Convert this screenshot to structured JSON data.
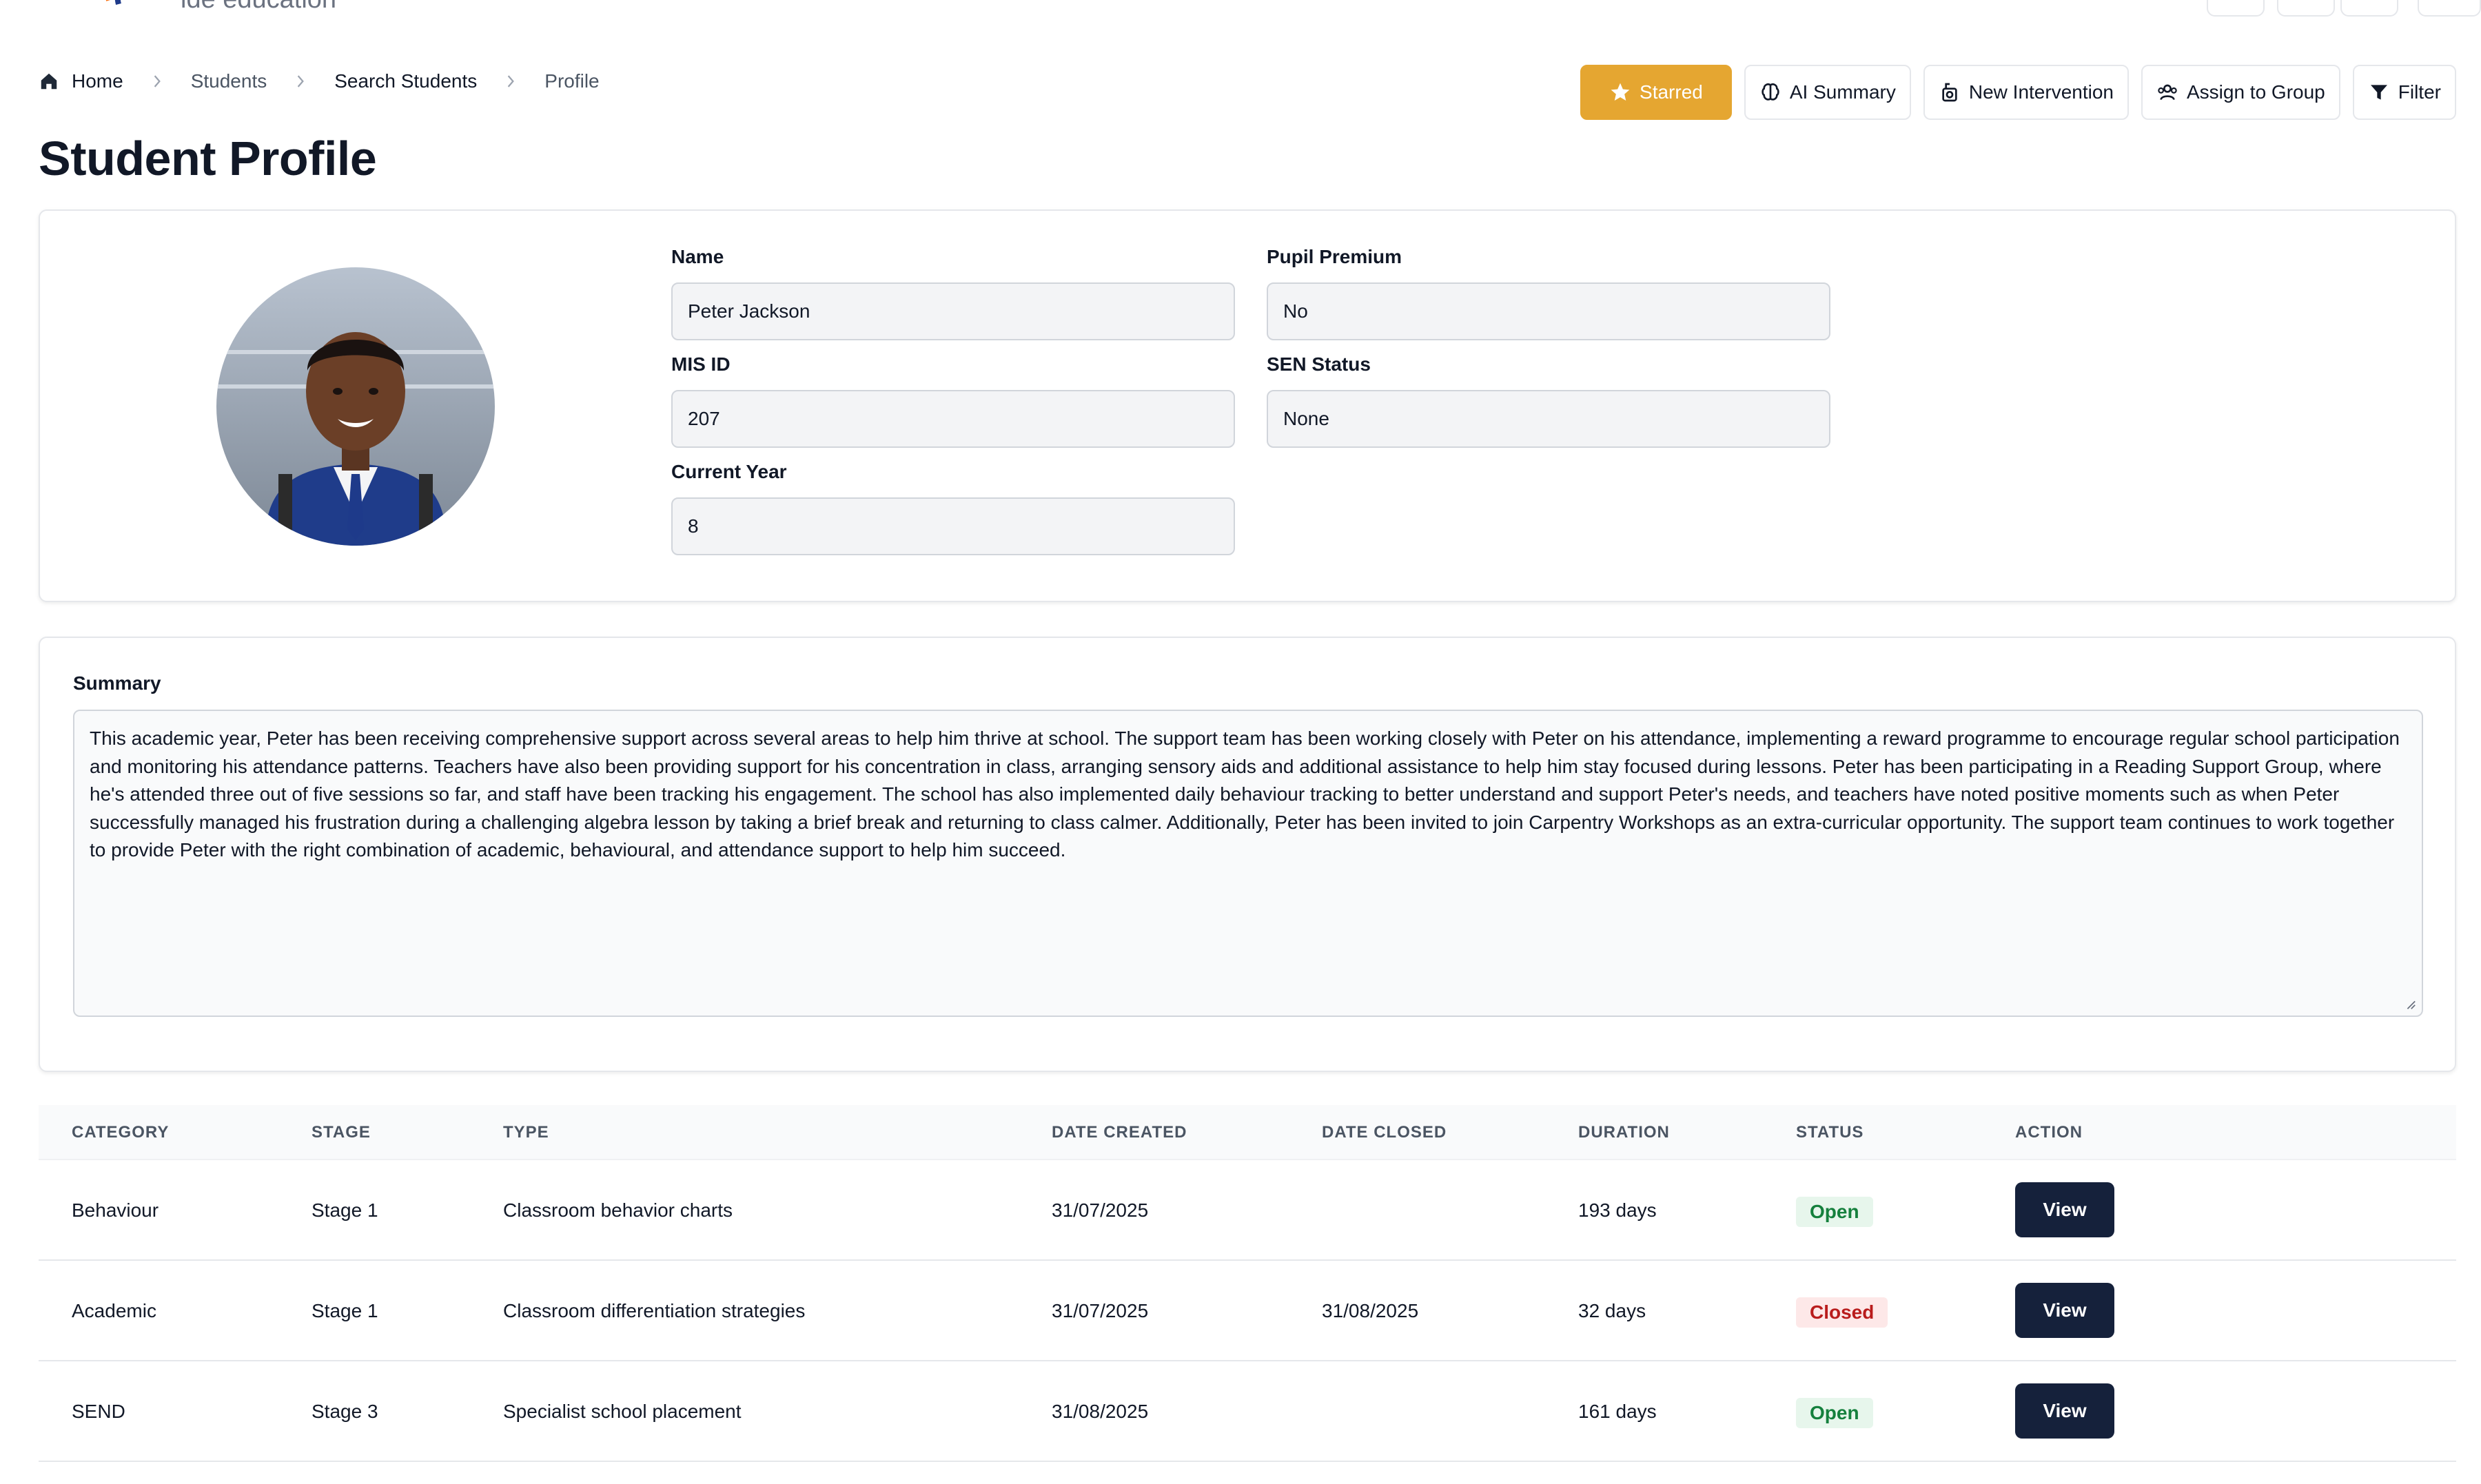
{
  "header": {
    "logo_text": "ide education"
  },
  "breadcrumb": {
    "items": [
      "Home",
      "Students",
      "Search Students",
      "Profile"
    ]
  },
  "page": {
    "title": "Student Profile"
  },
  "toolbar": {
    "starred": "Starred",
    "ai_summary": "AI Summary",
    "new_intervention": "New Intervention",
    "assign_to_group": "Assign to Group",
    "filter": "Filter"
  },
  "profile": {
    "name_label": "Name",
    "name_value": "Peter Jackson",
    "mis_label": "MIS ID",
    "mis_value": "207",
    "year_label": "Current Year",
    "year_value": "8",
    "pp_label": "Pupil Premium",
    "pp_value": "No",
    "sen_label": "SEN Status",
    "sen_value": "None"
  },
  "summary": {
    "label": "Summary",
    "text": "This academic year, Peter has been receiving comprehensive support across several areas to help him thrive at school. The support team has been working closely with Peter on his attendance, implementing a reward programme to encourage regular school participation and monitoring his attendance patterns. Teachers have also been providing support for his concentration in class, arranging sensory aids and additional assistance to help him stay focused during lessons. Peter has been participating in a Reading Support Group, where he's attended three out of five sessions so far, and staff have been tracking his engagement. The school has also implemented daily behaviour tracking to better understand and support Peter's needs, and teachers have noted positive moments such as when Peter successfully managed his frustration during a challenging algebra lesson by taking a brief break and returning to class calmer. Additionally, Peter has been invited to join Carpentry Workshops as an extra-curricular opportunity. The support team continues to work together to provide Peter with the right combination of academic, behavioural, and attendance support to help him succeed."
  },
  "table": {
    "headers": {
      "category": "CATEGORY",
      "stage": "STAGE",
      "type": "TYPE",
      "date_created": "DATE CREATED",
      "date_closed": "DATE CLOSED",
      "duration": "DURATION",
      "status": "STATUS",
      "action": "ACTION"
    },
    "rows": [
      {
        "category": "Behaviour",
        "stage": "Stage 1",
        "type": "Classroom behavior charts",
        "date_created": "31/07/2025",
        "date_closed": "",
        "duration": "193 days",
        "status": "Open",
        "action": "View"
      },
      {
        "category": "Academic",
        "stage": "Stage 1",
        "type": "Classroom differentiation strategies",
        "date_created": "31/07/2025",
        "date_closed": "31/08/2025",
        "duration": "32 days",
        "status": "Closed",
        "action": "View"
      },
      {
        "category": "SEND",
        "stage": "Stage 3",
        "type": "Specialist school placement",
        "date_created": "31/08/2025",
        "date_closed": "",
        "duration": "161 days",
        "status": "Open",
        "action": "View"
      }
    ]
  },
  "colors": {
    "starred": "#e5a631",
    "view_button": "#15213b",
    "open_badge": "#15803d",
    "closed_badge": "#b91c1c"
  }
}
